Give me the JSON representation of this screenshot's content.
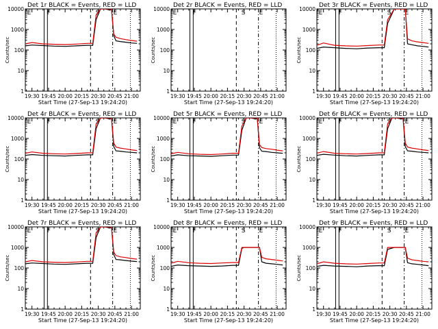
{
  "chart_data": {
    "type": "line",
    "yscale": "log",
    "ylim": [
      1,
      10000
    ],
    "ylabel": "Counts/sec",
    "xlabel": "Start Time (27-Sep-13 19:24:20)",
    "x_ticks": [
      "19:30",
      "19:45",
      "20:00",
      "20:15",
      "20:30",
      "20:45",
      "21:00"
    ],
    "y_ticks": [
      "1",
      "10",
      "100",
      "1000",
      "10000"
    ],
    "legend_text": "BLACK = Events, RED = LLD",
    "marker_labels": [
      "E",
      "F",
      "S",
      "E"
    ],
    "panels": [
      {
        "title": "Det 1r",
        "series": [
          {
            "name": "Events",
            "color": "#000000",
            "x": [
              "19:24",
              "19:30",
              "19:40",
              "19:50",
              "20:00",
              "20:10",
              "20:20",
              "20:25",
              "20:28",
              "20:32",
              "20:36",
              "20:40",
              "20:42",
              "20:44",
              "20:46",
              "20:50",
              "20:55",
              "21:00",
              "21:05"
            ],
            "y": [
              160,
              175,
              165,
              155,
              150,
              160,
              170,
              170,
              3000,
              10000,
              10000,
              9000,
              9000,
              500,
              280,
              260,
              240,
              220,
              210
            ]
          },
          {
            "name": "LLD",
            "color": "#dd0000",
            "x": [
              "19:24",
              "19:30",
              "19:40",
              "19:50",
              "20:00",
              "20:10",
              "20:20",
              "20:25",
              "20:28",
              "20:32",
              "20:36",
              "20:40",
              "20:42",
              "20:44",
              "20:46",
              "20:50",
              "20:55",
              "21:00",
              "21:05"
            ],
            "y": [
              200,
              230,
              200,
              190,
              185,
              195,
              210,
              210,
              5000,
              10000,
              10000,
              10000,
              10000,
              600,
              420,
              360,
              320,
              290,
              270
            ]
          }
        ]
      },
      {
        "title": "Det 2r",
        "series": []
      },
      {
        "title": "Det 3r",
        "series": [
          {
            "name": "Events",
            "color": "#000000",
            "x": [
              "19:24",
              "19:30",
              "19:40",
              "19:50",
              "20:00",
              "20:10",
              "20:20",
              "20:25",
              "20:28",
              "20:34",
              "20:40",
              "20:44",
              "20:46",
              "20:50",
              "20:55",
              "21:00",
              "21:05"
            ],
            "y": [
              120,
              140,
              130,
              120,
              115,
              125,
              130,
              130,
              2000,
              10000,
              10000,
              10000,
              200,
              180,
              160,
              150,
              140
            ]
          },
          {
            "name": "LLD",
            "color": "#dd0000",
            "x": [
              "19:24",
              "19:30",
              "19:40",
              "19:50",
              "20:00",
              "20:10",
              "20:20",
              "20:25",
              "20:28",
              "20:34",
              "20:40",
              "20:44",
              "20:46",
              "20:50",
              "20:55",
              "21:00",
              "21:05"
            ],
            "y": [
              170,
              220,
              170,
              160,
              155,
              165,
              175,
              175,
              3000,
              10000,
              10000,
              10000,
              350,
              280,
              250,
              230,
              210
            ]
          }
        ]
      },
      {
        "title": "Det 4r",
        "series": [
          {
            "name": "Events",
            "color": "#000000",
            "x": [
              "19:24",
              "19:30",
              "19:40",
              "19:50",
              "20:00",
              "20:10",
              "20:20",
              "20:25",
              "20:28",
              "20:32",
              "20:36",
              "20:40",
              "20:42",
              "20:44",
              "20:46",
              "20:50",
              "20:55",
              "21:00",
              "21:05"
            ],
            "y": [
              150,
              165,
              150,
              145,
              140,
              150,
              160,
              160,
              3000,
              10000,
              10000,
              9000,
              9000,
              400,
              250,
              240,
              220,
              210,
              200
            ]
          },
          {
            "name": "LLD",
            "color": "#dd0000",
            "x": [
              "19:24",
              "19:30",
              "19:40",
              "19:50",
              "20:00",
              "20:10",
              "20:20",
              "20:25",
              "20:28",
              "20:32",
              "20:36",
              "20:40",
              "20:42",
              "20:44",
              "20:46",
              "20:50",
              "20:55",
              "21:00",
              "21:05"
            ],
            "y": [
              190,
              220,
              190,
              180,
              175,
              185,
              200,
              200,
              5000,
              10000,
              10000,
              10000,
              10000,
              600,
              380,
              340,
              310,
              280,
              260
            ]
          }
        ]
      },
      {
        "title": "Det 5r",
        "series": [
          {
            "name": "Events",
            "color": "#000000",
            "x": [
              "19:24",
              "19:30",
              "19:40",
              "19:50",
              "20:00",
              "20:10",
              "20:20",
              "20:25",
              "20:28",
              "20:32",
              "20:36",
              "20:40",
              "20:42",
              "20:44",
              "20:46",
              "20:50",
              "20:55",
              "21:00",
              "21:05"
            ],
            "y": [
              140,
              160,
              145,
              140,
              135,
              145,
              155,
              155,
              2500,
              10000,
              10000,
              9000,
              9000,
              350,
              240,
              230,
              210,
              200,
              190
            ]
          },
          {
            "name": "LLD",
            "color": "#dd0000",
            "x": [
              "19:24",
              "19:30",
              "19:40",
              "19:50",
              "20:00",
              "20:10",
              "20:20",
              "20:25",
              "20:28",
              "20:32",
              "20:36",
              "20:40",
              "20:42",
              "20:44",
              "20:46",
              "20:50",
              "20:55",
              "21:00",
              "21:05"
            ],
            "y": [
              180,
              210,
              180,
              170,
              165,
              175,
              190,
              190,
              4000,
              10000,
              10000,
              10000,
              10000,
              500,
              360,
              320,
              300,
              270,
              250
            ]
          }
        ]
      },
      {
        "title": "Det 6r",
        "series": [
          {
            "name": "Events",
            "color": "#000000",
            "x": [
              "19:24",
              "19:30",
              "19:40",
              "19:50",
              "20:00",
              "20:10",
              "20:20",
              "20:25",
              "20:28",
              "20:32",
              "20:36",
              "20:40",
              "20:42",
              "20:44",
              "20:46",
              "20:50",
              "20:55",
              "21:00",
              "21:05"
            ],
            "y": [
              150,
              170,
              155,
              145,
              140,
              150,
              160,
              160,
              3000,
              10000,
              10000,
              9000,
              9000,
              400,
              250,
              240,
              220,
              210,
              200
            ]
          },
          {
            "name": "LLD",
            "color": "#dd0000",
            "x": [
              "19:24",
              "19:30",
              "19:40",
              "19:50",
              "20:00",
              "20:10",
              "20:20",
              "20:25",
              "20:28",
              "20:32",
              "20:36",
              "20:40",
              "20:42",
              "20:44",
              "20:46",
              "20:50",
              "20:55",
              "21:00",
              "21:05"
            ],
            "y": [
              190,
              230,
              190,
              180,
              175,
              185,
              200,
              200,
              5000,
              10000,
              10000,
              10000,
              10000,
              600,
              380,
              340,
              310,
              280,
              260
            ]
          }
        ]
      },
      {
        "title": "Det 7r",
        "series": [
          {
            "name": "Events",
            "color": "#000000",
            "x": [
              "19:24",
              "19:30",
              "19:40",
              "19:50",
              "20:00",
              "20:10",
              "20:20",
              "20:25",
              "20:28",
              "20:32",
              "20:36",
              "20:40",
              "20:42",
              "20:44",
              "20:46",
              "20:50",
              "20:55",
              "21:00",
              "21:05"
            ],
            "y": [
              160,
              175,
              165,
              155,
              150,
              160,
              170,
              170,
              3000,
              10000,
              10000,
              9000,
              9000,
              450,
              260,
              250,
              230,
              215,
              205
            ]
          },
          {
            "name": "LLD",
            "color": "#dd0000",
            "x": [
              "19:24",
              "19:30",
              "19:40",
              "19:50",
              "20:00",
              "20:10",
              "20:20",
              "20:25",
              "20:28",
              "20:32",
              "20:36",
              "20:40",
              "20:42",
              "20:44",
              "20:46",
              "20:50",
              "20:55",
              "21:00",
              "21:05"
            ],
            "y": [
              200,
              230,
              200,
              190,
              185,
              195,
              210,
              210,
              5000,
              10000,
              10000,
              10000,
              10000,
              600,
              400,
              350,
              320,
              290,
              270
            ]
          }
        ]
      },
      {
        "title": "Det 8r",
        "series": [
          {
            "name": "Events",
            "color": "#000000",
            "x": [
              "19:24",
              "19:30",
              "19:40",
              "19:50",
              "20:00",
              "20:10",
              "20:20",
              "20:25",
              "20:28",
              "20:30",
              "20:34",
              "20:38",
              "20:42",
              "20:44",
              "20:46",
              "20:50",
              "20:55",
              "21:00",
              "21:05"
            ],
            "y": [
              120,
              140,
              130,
              125,
              120,
              125,
              135,
              135,
              900,
              1000,
              1000,
              1000,
              1000,
              1000,
              200,
              170,
              160,
              150,
              140
            ]
          },
          {
            "name": "LLD",
            "color": "#dd0000",
            "x": [
              "19:24",
              "19:30",
              "19:40",
              "19:50",
              "20:00",
              "20:10",
              "20:20",
              "20:25",
              "20:28",
              "20:30",
              "20:34",
              "20:38",
              "20:42",
              "20:44",
              "20:46",
              "20:50",
              "20:55",
              "21:00",
              "21:05"
            ],
            "y": [
              170,
              210,
              180,
              170,
              165,
              175,
              185,
              185,
              1000,
              1000,
              1000,
              1000,
              1000,
              1000,
              330,
              280,
              260,
              240,
              220
            ]
          }
        ]
      },
      {
        "title": "Det 9r",
        "series": [
          {
            "name": "Events",
            "color": "#000000",
            "x": [
              "19:24",
              "19:30",
              "19:40",
              "19:50",
              "20:00",
              "20:10",
              "20:20",
              "20:25",
              "20:28",
              "20:34",
              "20:40",
              "20:44",
              "20:46",
              "20:50",
              "20:55",
              "21:00",
              "21:05"
            ],
            "y": [
              120,
              135,
              125,
              120,
              115,
              125,
              130,
              130,
              800,
              1000,
              1000,
              1000,
              180,
              160,
              150,
              140,
              130
            ]
          },
          {
            "name": "LLD",
            "color": "#dd0000",
            "x": [
              "19:24",
              "19:30",
              "19:40",
              "19:50",
              "20:00",
              "20:10",
              "20:20",
              "20:25",
              "20:28",
              "20:34",
              "20:40",
              "20:44",
              "20:46",
              "20:50",
              "20:55",
              "21:00",
              "21:05"
            ],
            "y": [
              160,
              200,
              170,
              160,
              155,
              165,
              175,
              175,
              1000,
              1000,
              1000,
              1000,
              300,
              250,
              230,
              210,
              200
            ]
          }
        ]
      }
    ]
  }
}
